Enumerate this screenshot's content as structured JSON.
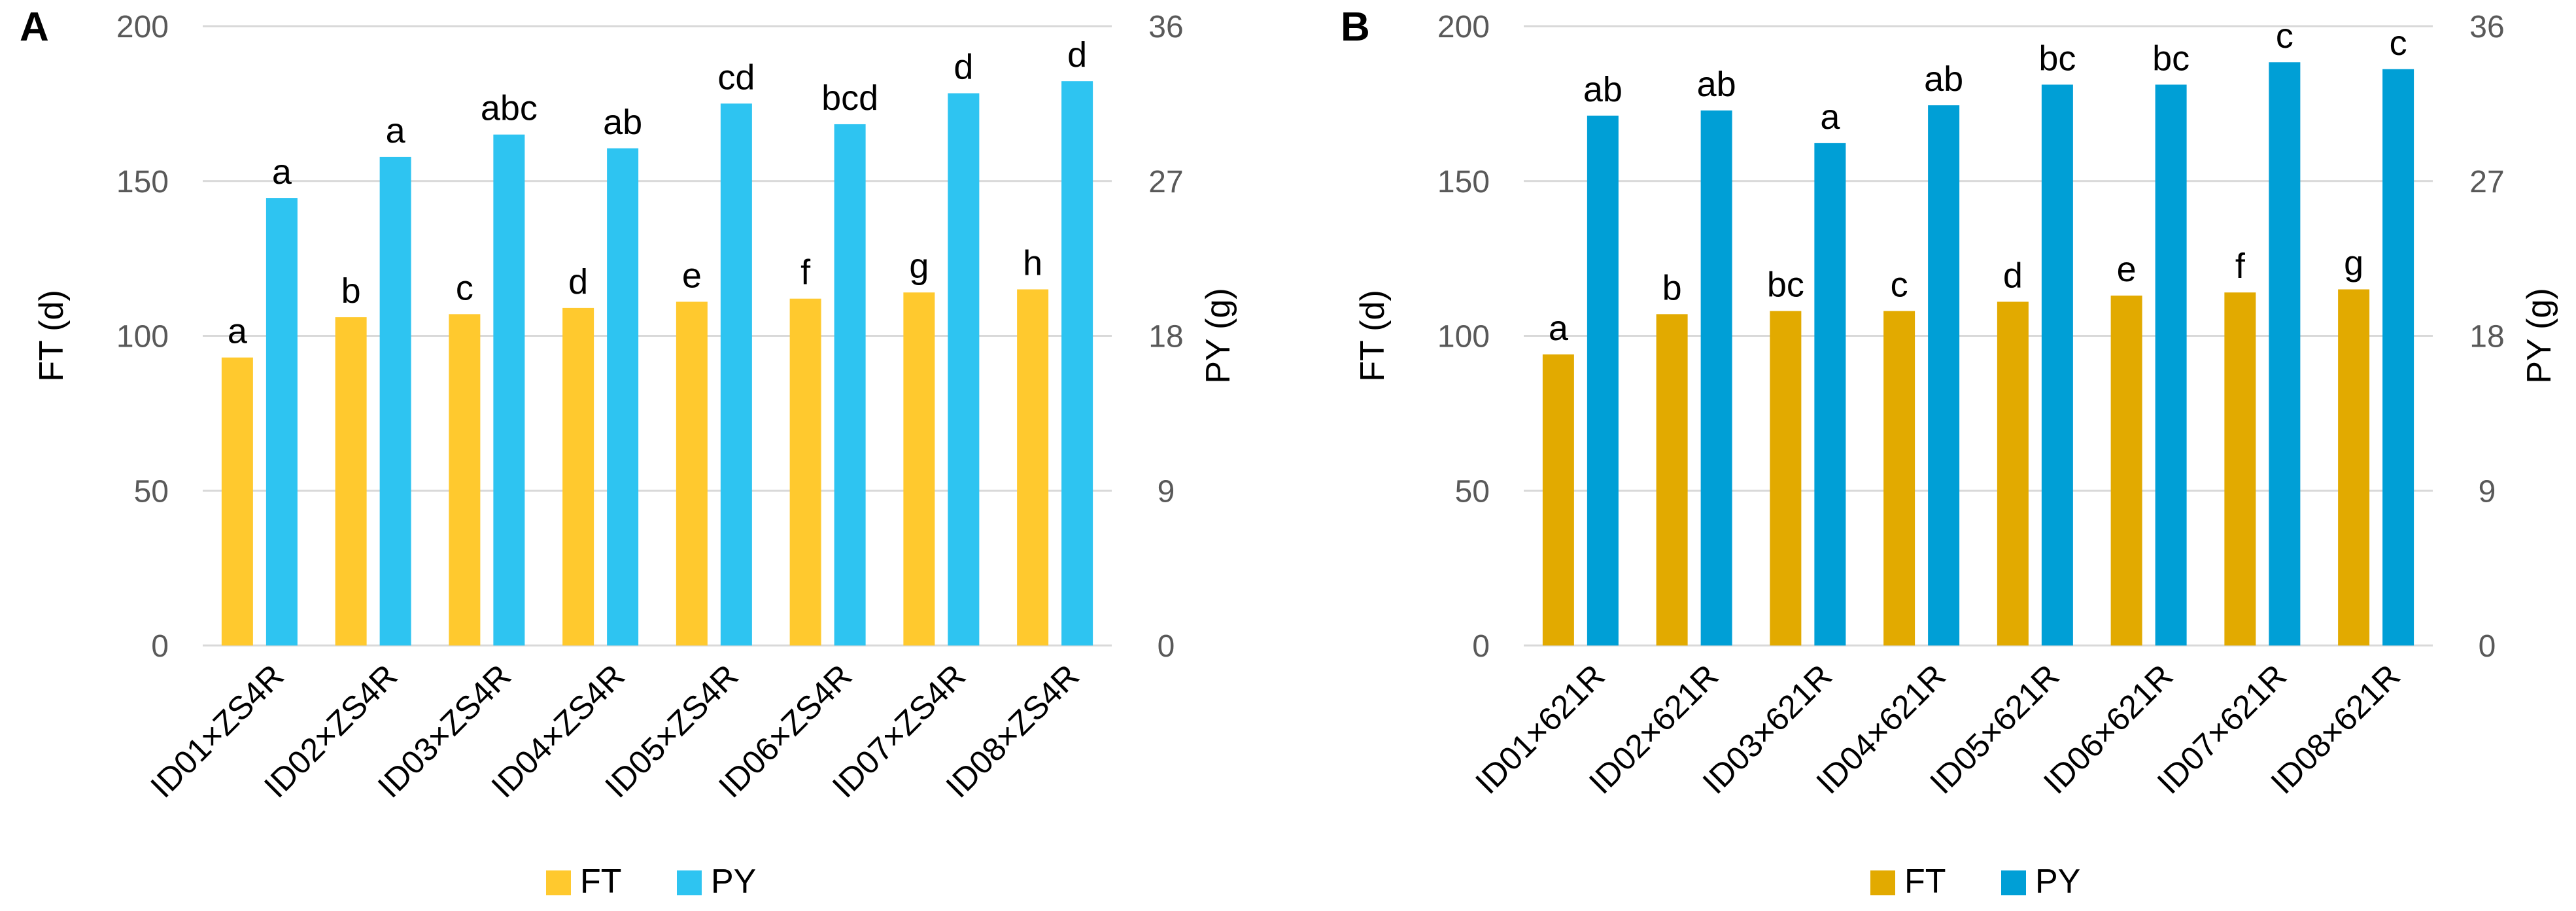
{
  "chart_data": [
    {
      "panel_label": "A",
      "type": "bar",
      "categories": [
        "ID01×ZS4R",
        "ID02×ZS4R",
        "ID03×ZS4R",
        "ID04×ZS4R",
        "ID05×ZS4R",
        "ID06×ZS4R",
        "ID07×ZS4R",
        "ID08×ZS4R"
      ],
      "series": [
        {
          "name": "FT",
          "axis": "left",
          "color": "#FFC92E",
          "values": [
            93,
            106,
            107,
            109,
            111,
            112,
            114,
            115
          ],
          "labels": [
            "a",
            "b",
            "c",
            "d",
            "e",
            "f",
            "g",
            "h"
          ]
        },
        {
          "name": "PY",
          "axis": "right",
          "color": "#2EC4F1",
          "values": [
            26.0,
            28.4,
            29.7,
            28.9,
            31.5,
            30.3,
            32.1,
            32.8
          ],
          "labels": [
            "a",
            "a",
            "abc",
            "ab",
            "cd",
            "bcd",
            "d",
            "d"
          ]
        }
      ],
      "y_left": {
        "label": "FT (d)",
        "lim": [
          0,
          200
        ],
        "ticks": [
          "0",
          "50",
          "100",
          "150",
          "200"
        ]
      },
      "y_right": {
        "label": "PY (g)",
        "lim": [
          0,
          36
        ],
        "ticks": [
          "0",
          "9",
          "18",
          "27",
          "36"
        ]
      },
      "grid": true,
      "legend": "bottom",
      "legend_items": [
        "FT",
        "PY"
      ]
    },
    {
      "panel_label": "B",
      "type": "bar",
      "categories": [
        "ID01×621R",
        "ID02×621R",
        "ID03×621R",
        "ID04×621R",
        "ID05×621R",
        "ID06×621R",
        "ID07×621R",
        "ID08×621R"
      ],
      "series": [
        {
          "name": "FT",
          "axis": "left",
          "color": "#E2AA00",
          "values": [
            94,
            107,
            108,
            108,
            111,
            113,
            114,
            115
          ],
          "labels": [
            "a",
            "b",
            "bc",
            "c",
            "d",
            "e",
            "f",
            "g"
          ]
        },
        {
          "name": "PY",
          "axis": "right",
          "color": "#009FD6",
          "values": [
            30.8,
            31.1,
            29.2,
            31.4,
            32.6,
            32.6,
            33.9,
            33.5
          ],
          "labels": [
            "ab",
            "ab",
            "a",
            "ab",
            "bc",
            "bc",
            "c",
            "c"
          ]
        }
      ],
      "y_left": {
        "label": "FT (d)",
        "lim": [
          0,
          200
        ],
        "ticks": [
          "0",
          "50",
          "100",
          "150",
          "200"
        ]
      },
      "y_right": {
        "label": "PY (g)",
        "lim": [
          0,
          36
        ],
        "ticks": [
          "0",
          "9",
          "18",
          "27",
          "36"
        ]
      },
      "grid": true,
      "legend": "bottom",
      "legend_items": [
        "FT",
        "PY"
      ]
    }
  ]
}
